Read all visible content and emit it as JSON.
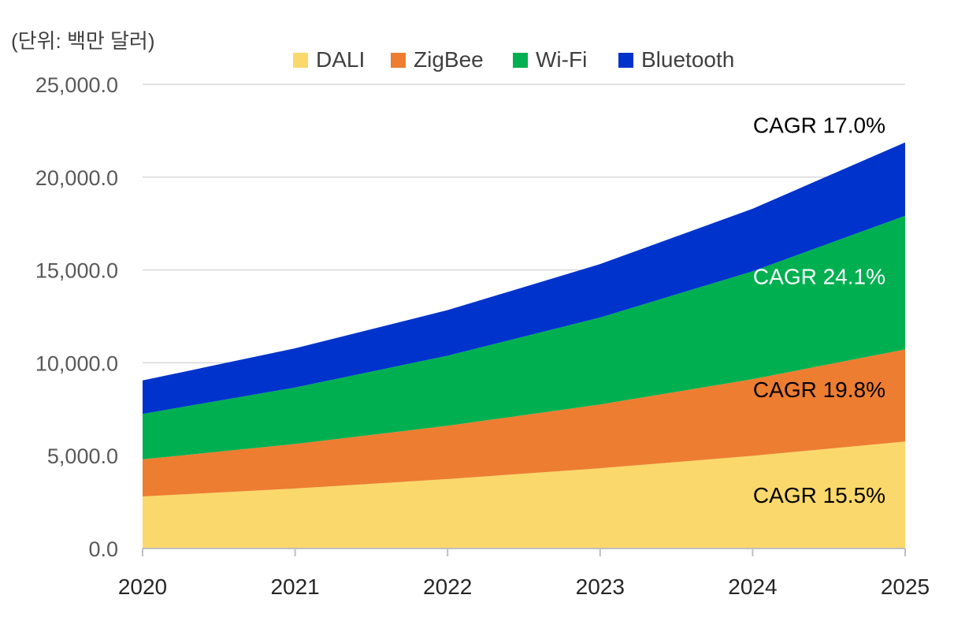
{
  "chart_data": {
    "type": "area",
    "stacked": true,
    "unit_label": "(단위: 백만 달러)",
    "x": [
      "2020",
      "2021",
      "2022",
      "2023",
      "2024",
      "2025"
    ],
    "y_ticks": [
      "0.0",
      "5,000.0",
      "10,000.0",
      "15,000.0",
      "20,000.0",
      "25,000.0"
    ],
    "ylim": [
      0,
      25000
    ],
    "grid": "horizontal",
    "legend_position": "top",
    "series": [
      {
        "name": "DALI",
        "color": "#FBD86B",
        "values": [
          2800,
          3230,
          3740,
          4320,
          4990,
          5760
        ]
      },
      {
        "name": "ZigBee",
        "color": "#ED7D31",
        "values": [
          2000,
          2400,
          2870,
          3440,
          4130,
          4960
        ]
      },
      {
        "name": "Wi-Fi",
        "color": "#00B050",
        "values": [
          2450,
          3040,
          3770,
          4680,
          5810,
          7200
        ]
      },
      {
        "name": "Bluetooth",
        "color": "#0033CC",
        "values": [
          1800,
          2110,
          2460,
          2880,
          3370,
          3950
        ]
      }
    ],
    "annotations": [
      {
        "text": "CAGR  17.0%",
        "color": "#000000",
        "series": "Bluetooth"
      },
      {
        "text": "CAGR  24.1%",
        "color": "#ffffff",
        "series": "Wi-Fi"
      },
      {
        "text": "CAGR  19.8%",
        "color": "#000000",
        "series": "ZigBee"
      },
      {
        "text": "CAGR  15.5%",
        "color": "#000000",
        "series": "DALI"
      }
    ]
  }
}
